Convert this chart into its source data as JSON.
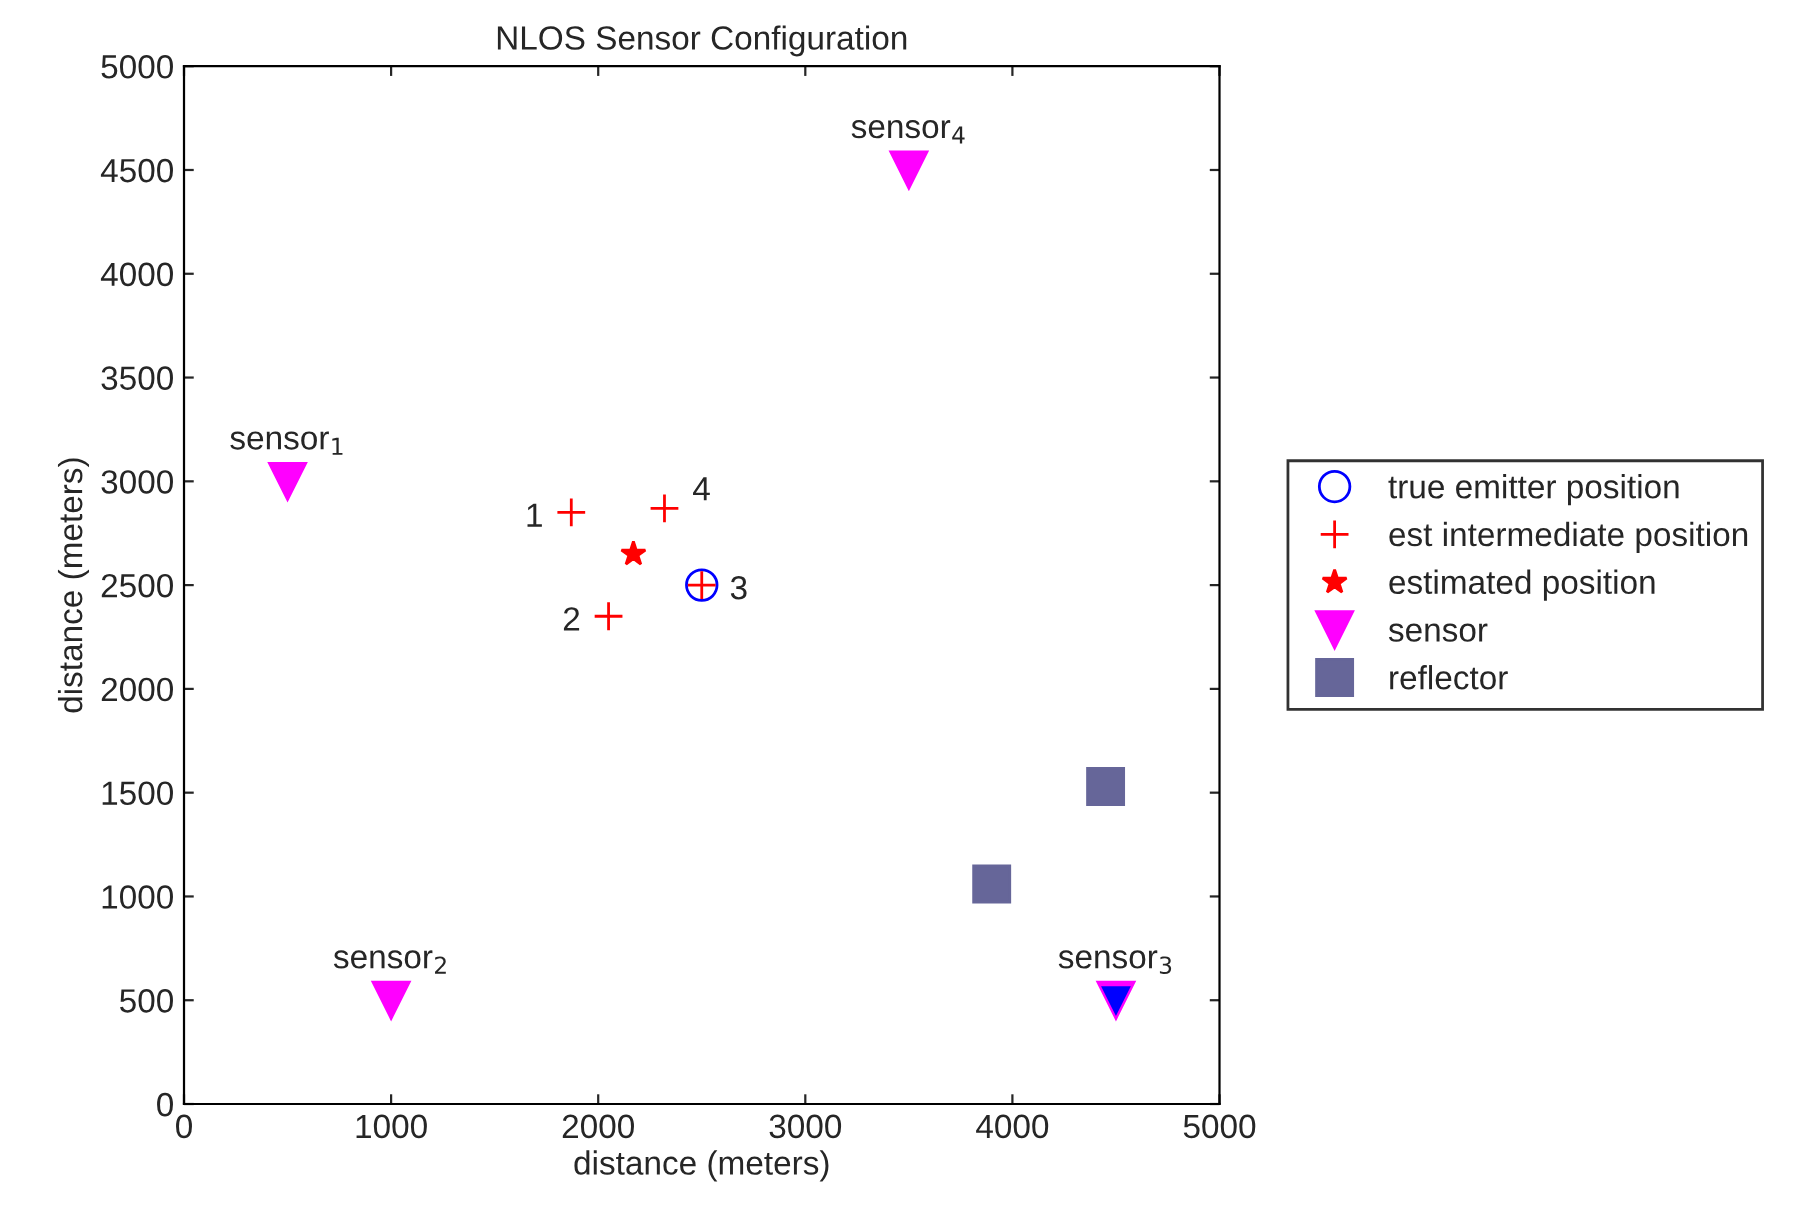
{
  "chart_data": {
    "type": "scatter",
    "title": "NLOS Sensor Configuration",
    "xlabel": "distance (meters)",
    "ylabel": "distance (meters)",
    "xlim": [
      0,
      5000
    ],
    "ylim": [
      0,
      5000
    ],
    "xticks": [
      0,
      1000,
      2000,
      3000,
      4000,
      5000
    ],
    "yticks": [
      0,
      500,
      1000,
      1500,
      2000,
      2500,
      3000,
      3500,
      4000,
      4500,
      5000
    ],
    "grid": false,
    "legend": "right",
    "series": [
      {
        "name": "true emitter position",
        "color": "#0000ff",
        "marker": "circle",
        "x": [
          2500
        ],
        "values": [
          2500
        ]
      },
      {
        "name": "est intermediate position",
        "color": "#ff0000",
        "marker": "cross",
        "x": [
          1870,
          2050,
          2500,
          2320
        ],
        "values": [
          2850,
          2350,
          2500,
          2870
        ]
      },
      {
        "name": "estimated position",
        "color": "#ff0000",
        "marker": "star",
        "x": [
          2170
        ],
        "values": [
          2650
        ]
      },
      {
        "name": "sensor",
        "color": "#ff00ff",
        "marker": "triangle",
        "x": [
          500,
          1000,
          4500,
          3500
        ],
        "values": [
          3000,
          500,
          500,
          4500
        ]
      },
      {
        "name": "reflector",
        "color": "#666699",
        "marker": "square",
        "x": [
          3900,
          4450
        ],
        "values": [
          1060,
          1530
        ]
      },
      {
        "color": "#0000ff",
        "marker": "triangle",
        "x": [
          4500
        ],
        "values": [
          500
        ]
      }
    ],
    "annotations": [
      {
        "text": "sensor$_{1}$",
        "x": 500,
        "y": 3000
      },
      {
        "text": "sensor$_{2}$",
        "x": 1000,
        "y": 500
      },
      {
        "text": "sensor$_{3}$",
        "x": 4500,
        "y": 500
      },
      {
        "text": "sensor$_{4}$",
        "x": 3500,
        "y": 4500
      },
      {
        "text": "1",
        "x": 1870,
        "y": 2850
      },
      {
        "text": "2",
        "x": 2050,
        "y": 2350
      },
      {
        "text": "3",
        "x": 2500,
        "y": 2500
      },
      {
        "text": "4",
        "x": 2320,
        "y": 2870
      }
    ]
  }
}
